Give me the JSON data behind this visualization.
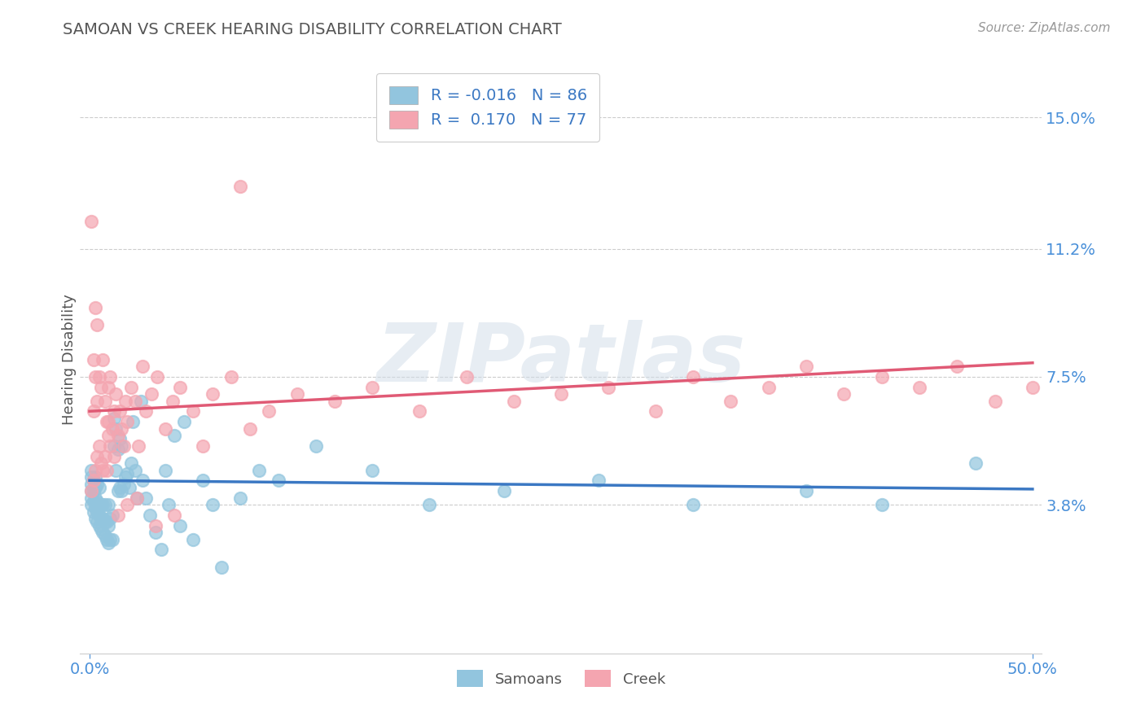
{
  "title": "SAMOAN VS CREEK HEARING DISABILITY CORRELATION CHART",
  "source": "Source: ZipAtlas.com",
  "ylabel": "Hearing Disability",
  "xlim": [
    -0.005,
    0.505
  ],
  "ylim": [
    -0.005,
    0.165
  ],
  "yticks": [
    0.038,
    0.075,
    0.112,
    0.15
  ],
  "ytick_labels": [
    "3.8%",
    "7.5%",
    "11.2%",
    "15.0%"
  ],
  "xticks": [
    0.0,
    0.5
  ],
  "xtick_labels": [
    "0.0%",
    "50.0%"
  ],
  "samoans_color": "#92C5DE",
  "creek_color": "#F4A5B0",
  "samoans_line_color": "#3B78C3",
  "creek_line_color": "#E05A75",
  "R_samoans": -0.016,
  "N_samoans": 86,
  "R_creek": 0.17,
  "N_creek": 77,
  "title_color": "#555555",
  "axis_label_color": "#4A90D9",
  "tick_color": "#4A90D9",
  "grid_color": "#CCCCCC",
  "background_color": "#FFFFFF",
  "legend_label_color": "#3B78C3",
  "samoans_x": [
    0.001,
    0.001,
    0.001,
    0.001,
    0.001,
    0.001,
    0.002,
    0.002,
    0.002,
    0.002,
    0.003,
    0.003,
    0.003,
    0.003,
    0.003,
    0.004,
    0.004,
    0.004,
    0.004,
    0.005,
    0.005,
    0.005,
    0.005,
    0.006,
    0.006,
    0.006,
    0.007,
    0.007,
    0.007,
    0.008,
    0.008,
    0.008,
    0.009,
    0.009,
    0.01,
    0.01,
    0.01,
    0.011,
    0.011,
    0.012,
    0.012,
    0.013,
    0.013,
    0.014,
    0.014,
    0.015,
    0.015,
    0.016,
    0.016,
    0.017,
    0.017,
    0.018,
    0.019,
    0.02,
    0.021,
    0.022,
    0.023,
    0.024,
    0.025,
    0.027,
    0.028,
    0.03,
    0.032,
    0.035,
    0.038,
    0.04,
    0.042,
    0.045,
    0.048,
    0.05,
    0.055,
    0.06,
    0.065,
    0.07,
    0.08,
    0.09,
    0.1,
    0.12,
    0.15,
    0.18,
    0.22,
    0.27,
    0.32,
    0.38,
    0.42,
    0.47
  ],
  "samoans_y": [
    0.038,
    0.04,
    0.042,
    0.044,
    0.046,
    0.048,
    0.036,
    0.039,
    0.042,
    0.045,
    0.034,
    0.037,
    0.04,
    0.043,
    0.046,
    0.033,
    0.036,
    0.039,
    0.044,
    0.032,
    0.035,
    0.038,
    0.043,
    0.031,
    0.034,
    0.038,
    0.03,
    0.034,
    0.038,
    0.029,
    0.033,
    0.038,
    0.028,
    0.033,
    0.027,
    0.032,
    0.038,
    0.028,
    0.034,
    0.028,
    0.035,
    0.055,
    0.063,
    0.048,
    0.06,
    0.042,
    0.054,
    0.043,
    0.057,
    0.042,
    0.055,
    0.044,
    0.046,
    0.047,
    0.043,
    0.05,
    0.062,
    0.048,
    0.04,
    0.068,
    0.045,
    0.04,
    0.035,
    0.03,
    0.025,
    0.048,
    0.038,
    0.058,
    0.032,
    0.062,
    0.028,
    0.045,
    0.038,
    0.02,
    0.04,
    0.048,
    0.045,
    0.055,
    0.048,
    0.038,
    0.042,
    0.045,
    0.038,
    0.042,
    0.038,
    0.05
  ],
  "creek_x": [
    0.001,
    0.001,
    0.002,
    0.002,
    0.002,
    0.003,
    0.003,
    0.003,
    0.004,
    0.004,
    0.004,
    0.005,
    0.005,
    0.006,
    0.006,
    0.007,
    0.007,
    0.008,
    0.008,
    0.009,
    0.009,
    0.01,
    0.01,
    0.011,
    0.011,
    0.012,
    0.013,
    0.013,
    0.014,
    0.015,
    0.016,
    0.017,
    0.018,
    0.019,
    0.02,
    0.022,
    0.024,
    0.026,
    0.028,
    0.03,
    0.033,
    0.036,
    0.04,
    0.044,
    0.048,
    0.055,
    0.065,
    0.075,
    0.085,
    0.095,
    0.11,
    0.13,
    0.15,
    0.175,
    0.2,
    0.225,
    0.25,
    0.275,
    0.3,
    0.32,
    0.34,
    0.36,
    0.38,
    0.4,
    0.42,
    0.44,
    0.46,
    0.48,
    0.5,
    0.01,
    0.015,
    0.02,
    0.025,
    0.035,
    0.045,
    0.06,
    0.08
  ],
  "creek_y": [
    0.042,
    0.12,
    0.045,
    0.065,
    0.08,
    0.048,
    0.075,
    0.095,
    0.052,
    0.068,
    0.09,
    0.055,
    0.075,
    0.05,
    0.072,
    0.048,
    0.08,
    0.052,
    0.068,
    0.048,
    0.062,
    0.058,
    0.072,
    0.055,
    0.075,
    0.06,
    0.065,
    0.052,
    0.07,
    0.058,
    0.065,
    0.06,
    0.055,
    0.068,
    0.062,
    0.072,
    0.068,
    0.055,
    0.078,
    0.065,
    0.07,
    0.075,
    0.06,
    0.068,
    0.072,
    0.065,
    0.07,
    0.075,
    0.06,
    0.065,
    0.07,
    0.068,
    0.072,
    0.065,
    0.075,
    0.068,
    0.07,
    0.072,
    0.065,
    0.075,
    0.068,
    0.072,
    0.078,
    0.07,
    0.075,
    0.072,
    0.078,
    0.068,
    0.072,
    0.062,
    0.035,
    0.038,
    0.04,
    0.032,
    0.035,
    0.055,
    0.13
  ],
  "creek_line_intercept": 0.065,
  "creek_line_slope": 0.028,
  "samoans_line_intercept": 0.045,
  "samoans_line_slope": -0.005
}
